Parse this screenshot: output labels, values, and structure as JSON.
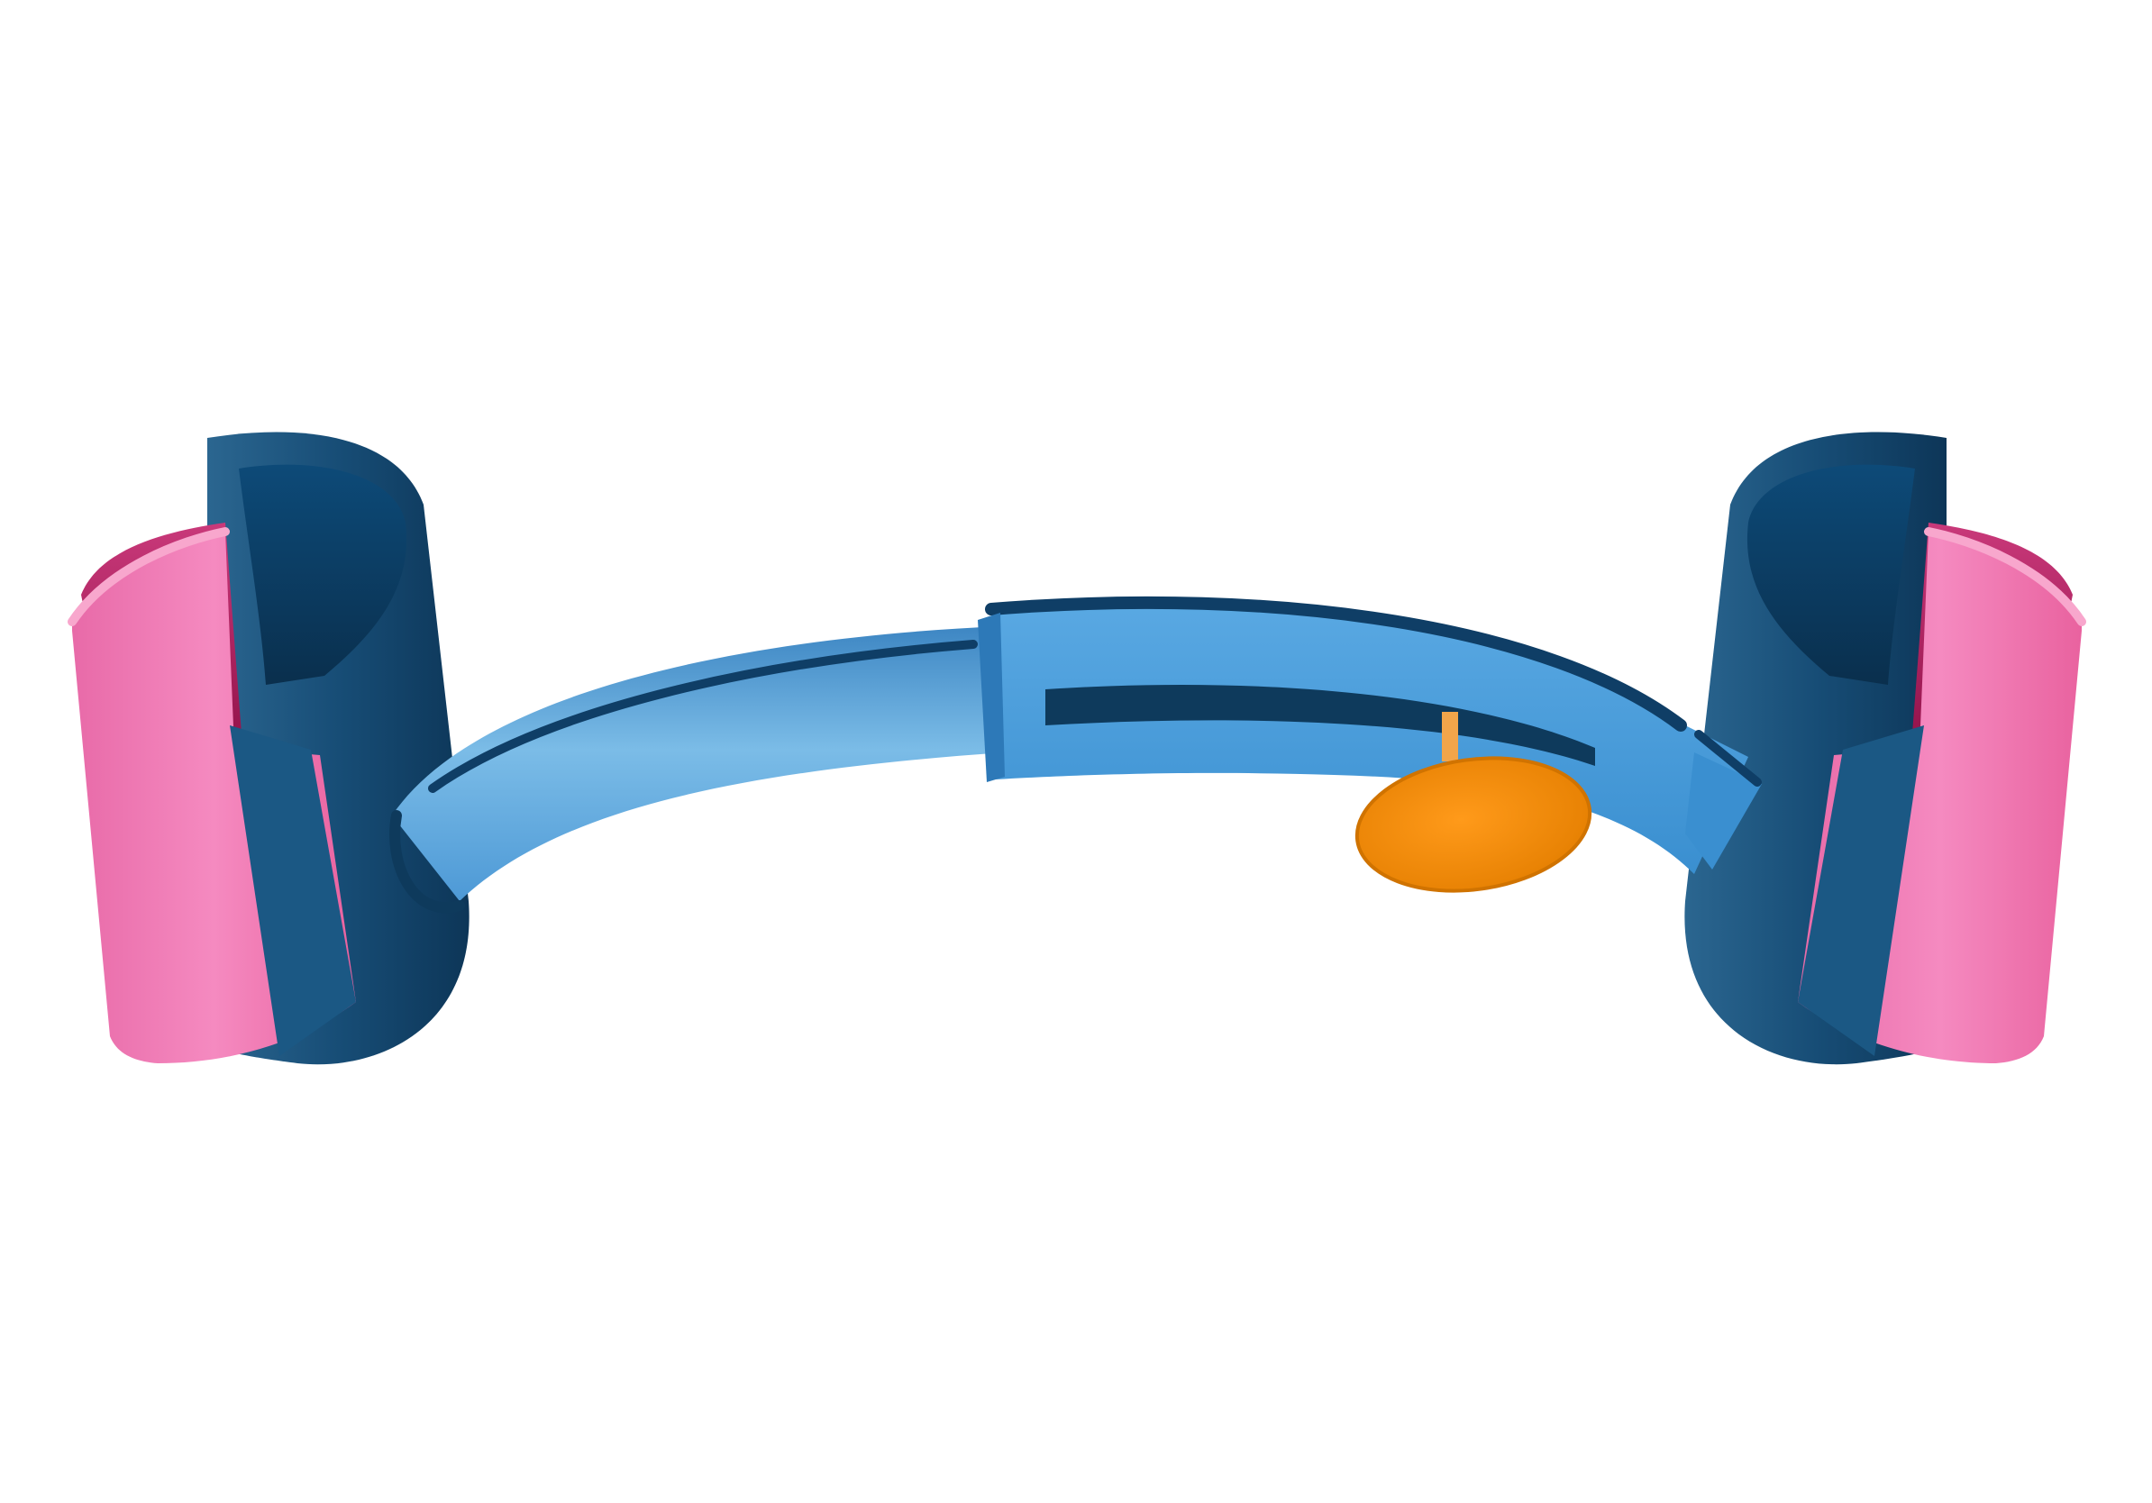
{
  "illustration": {
    "subject": "",
    "colors": {
      "background": "#ffffff",
      "cuff_pink": "#f47bb3",
      "cuff_pink_dark": "#c2306f",
      "cuff_pink_shadow": "#8f0f45",
      "cuff_navy": "#1c5580",
      "cuff_navy_dark": "#0e3a5c",
      "bar_blue_light": "#74b7e6",
      "bar_blue": "#4a97d6",
      "bar_blue_dark": "#0f4a79",
      "knob_orange": "#f28a00",
      "knob_orange_dark": "#c86f00"
    },
    "parts": {
      "left_cuff": "left-cuff",
      "right_cuff": "right-cuff",
      "connecting_bar": "curved-connecting-bar",
      "adjustment_knob": "adjustment-knob"
    }
  }
}
